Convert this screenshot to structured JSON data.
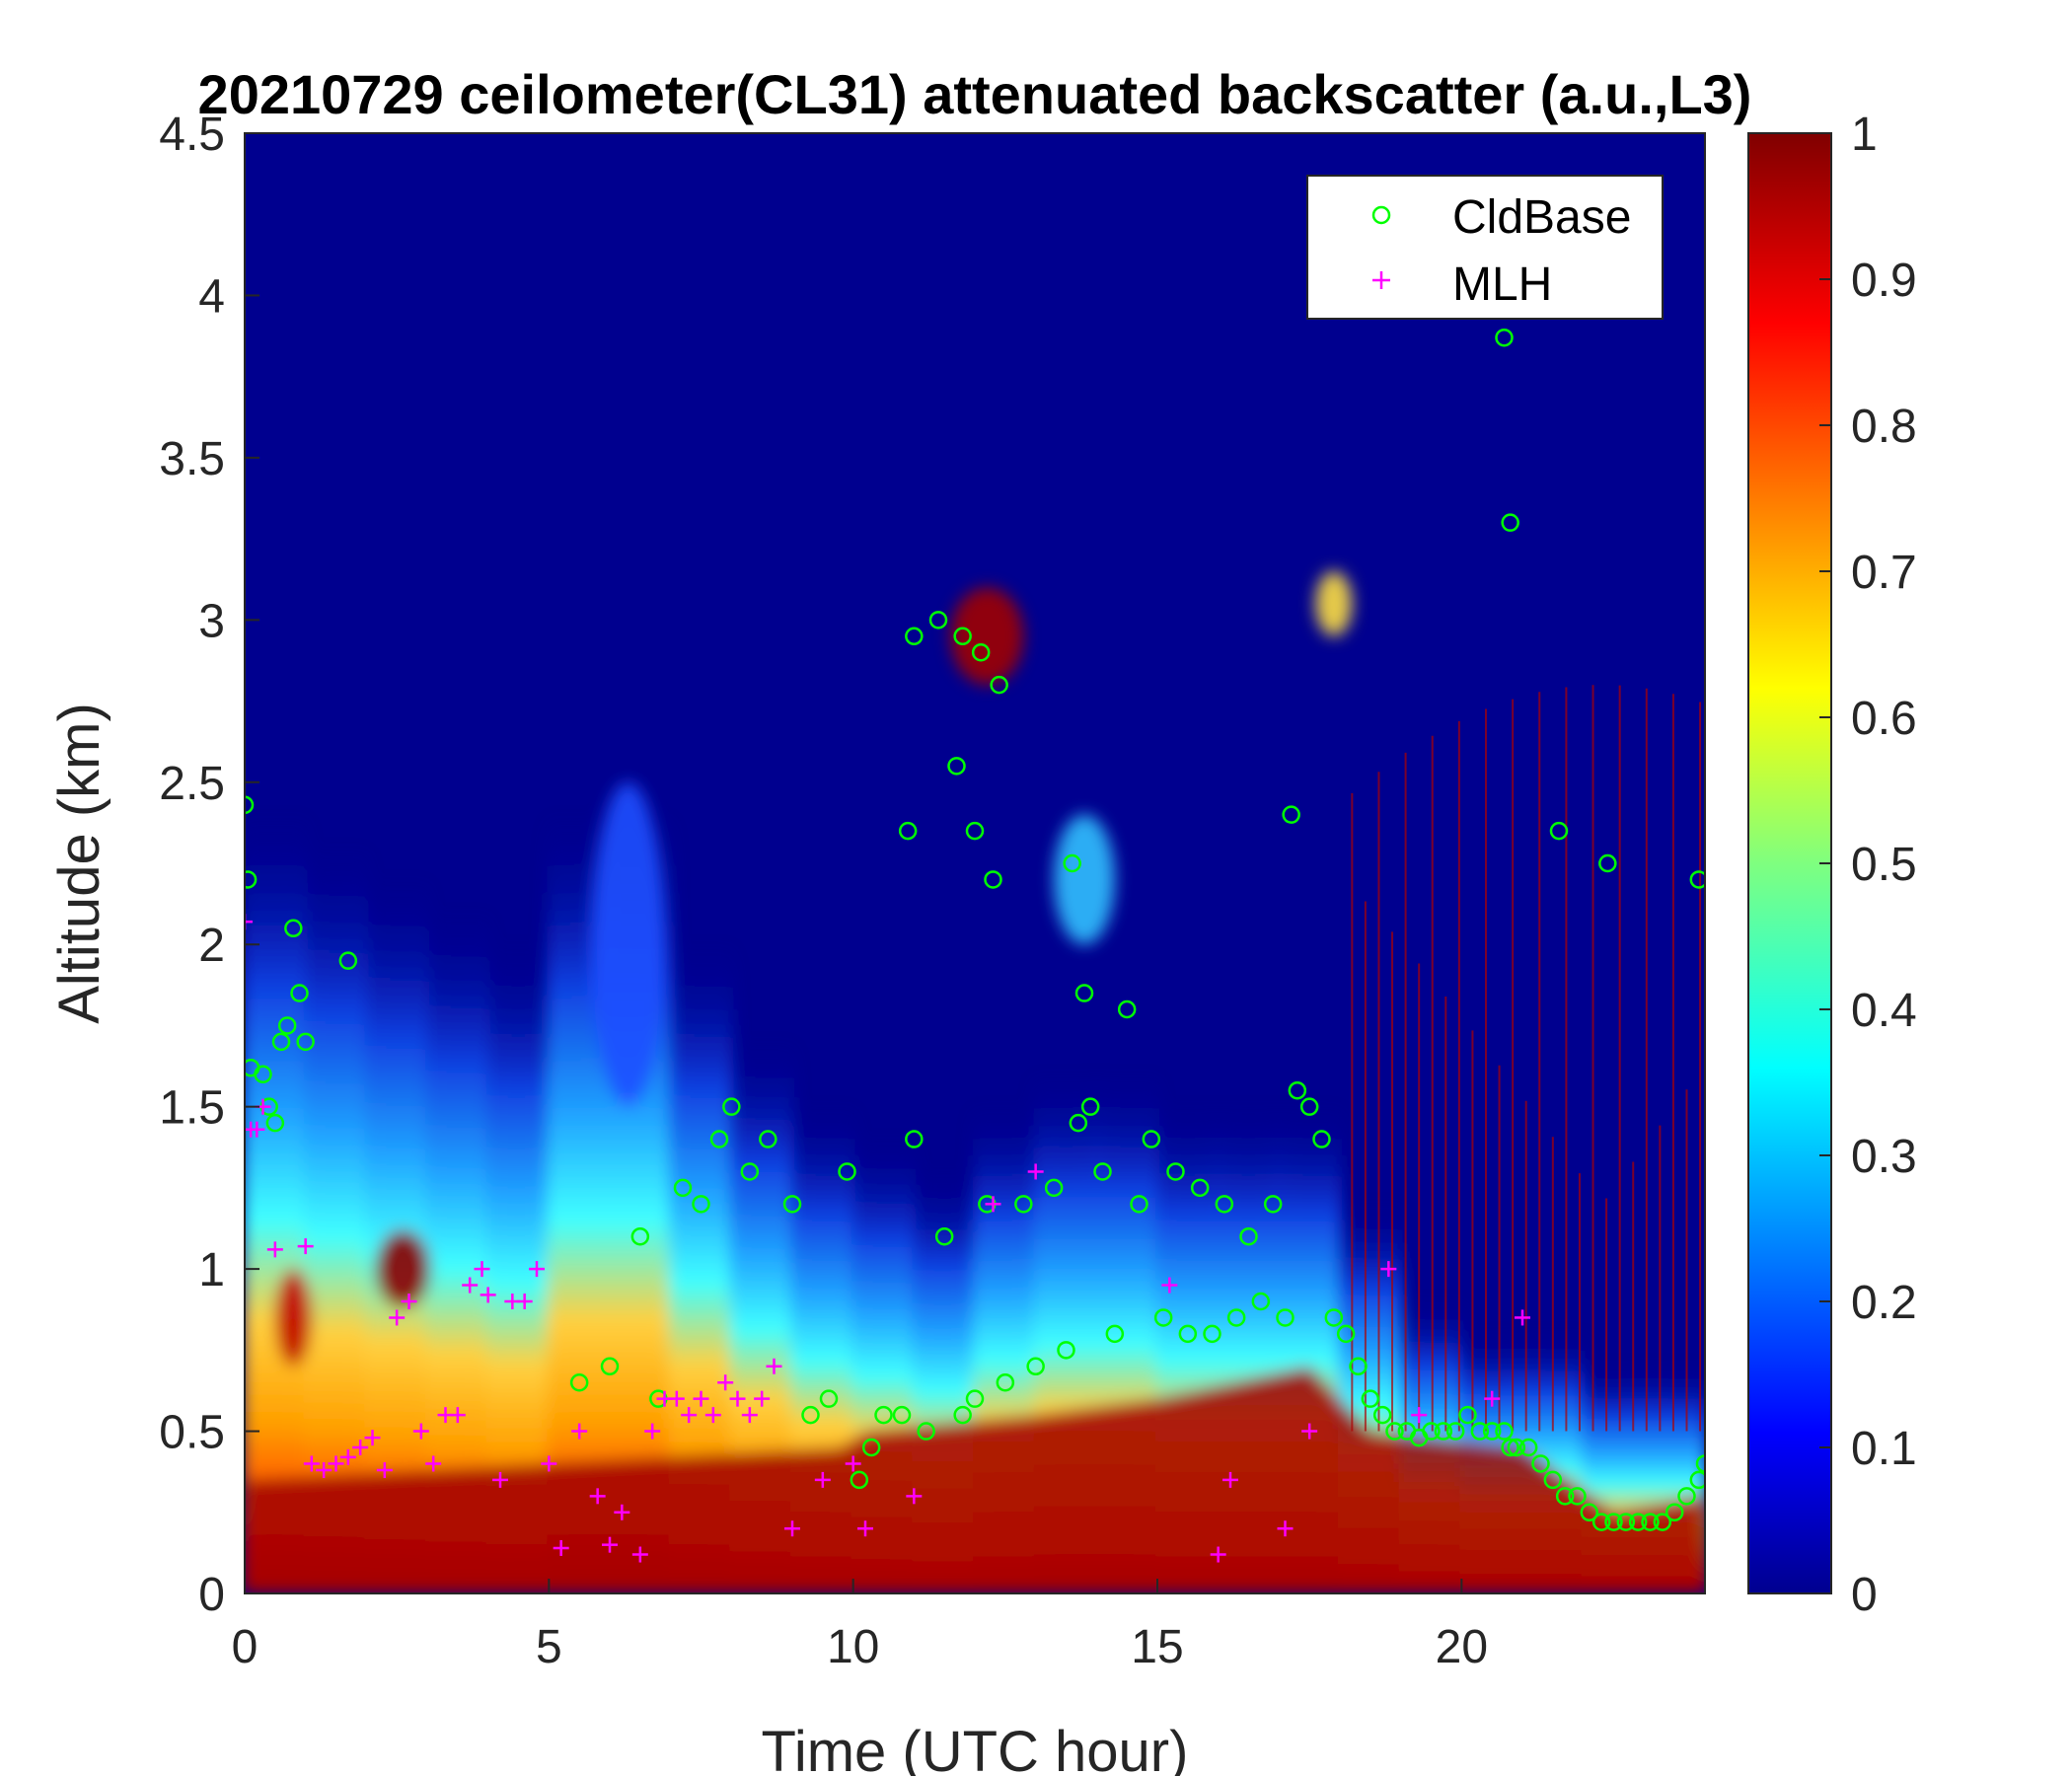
{
  "chart_data": {
    "type": "heatmap",
    "title": "20210729 ceilometer(CL31) attenuated backscatter (a.u.,L3)",
    "xlabel": "Time (UTC hour)",
    "ylabel": "Altitude (km)",
    "xlim": [
      0,
      24
    ],
    "ylim": [
      0,
      4.5
    ],
    "x_ticks": [
      0,
      5,
      10,
      15,
      20
    ],
    "y_ticks": [
      0,
      0.5,
      1,
      1.5,
      2,
      2.5,
      3,
      3.5,
      4,
      4.5
    ],
    "colorbar": {
      "colormap": "jet",
      "range": [
        0,
        1
      ],
      "ticks": [
        0,
        0.1,
        0.2,
        0.3,
        0.4,
        0.5,
        0.6,
        0.7,
        0.8,
        0.9,
        1
      ]
    },
    "legend": {
      "position": "top-right",
      "entries": [
        {
          "label": "CldBase",
          "marker": "circle",
          "color": "#00ff00"
        },
        {
          "label": "MLH",
          "marker": "plus",
          "color": "#ff00ff"
        }
      ]
    },
    "series": [
      {
        "name": "CldBase",
        "color": "#00ff00",
        "x": [
          0.0,
          0.05,
          0.1,
          0.3,
          0.4,
          0.5,
          0.6,
          0.7,
          0.8,
          0.9,
          1.0,
          1.7,
          5.5,
          6.0,
          6.5,
          6.8,
          7.2,
          7.5,
          7.8,
          8.0,
          8.3,
          8.6,
          9.0,
          9.3,
          9.6,
          9.9,
          10.1,
          10.3,
          10.5,
          10.8,
          11.0,
          11.2,
          11.5,
          11.8,
          12.0,
          12.2,
          12.5,
          12.8,
          13.0,
          13.3,
          13.5,
          13.7,
          13.9,
          14.1,
          14.3,
          14.5,
          14.7,
          14.9,
          15.1,
          15.3,
          15.5,
          15.7,
          15.9,
          16.1,
          16.3,
          16.5,
          16.7,
          16.9,
          17.1,
          17.3,
          17.5,
          17.7,
          17.9,
          18.1,
          18.3,
          18.5,
          18.7,
          18.9,
          19.1,
          19.3,
          19.5,
          19.7,
          19.9,
          20.1,
          20.3,
          20.5,
          20.7,
          20.8,
          20.9,
          21.1,
          21.3,
          21.5,
          21.7,
          21.9,
          22.1,
          22.3,
          22.5,
          22.7,
          22.9,
          23.1,
          23.3,
          23.5,
          23.7,
          23.9,
          24.0,
          11.0,
          11.4,
          11.8,
          12.1,
          12.4,
          11.7,
          12.0,
          12.3,
          13.6,
          13.8,
          10.9,
          17.2,
          20.7,
          20.8,
          21.6,
          22.4,
          23.9
        ],
        "y": [
          2.43,
          2.2,
          1.62,
          1.6,
          1.5,
          1.45,
          1.7,
          1.75,
          2.05,
          1.85,
          1.7,
          1.95,
          0.65,
          0.7,
          1.1,
          0.6,
          1.25,
          1.2,
          1.4,
          1.5,
          1.3,
          1.4,
          1.2,
          0.55,
          0.6,
          1.3,
          0.35,
          0.45,
          0.55,
          0.55,
          1.4,
          0.5,
          1.1,
          0.55,
          0.6,
          1.2,
          0.65,
          1.2,
          0.7,
          1.25,
          0.75,
          1.45,
          1.5,
          1.3,
          0.8,
          1.8,
          1.2,
          1.4,
          0.85,
          1.3,
          0.8,
          1.25,
          0.8,
          1.2,
          0.85,
          1.1,
          0.9,
          1.2,
          0.85,
          1.55,
          1.5,
          1.4,
          0.85,
          0.8,
          0.7,
          0.6,
          0.55,
          0.5,
          0.5,
          0.48,
          0.5,
          0.5,
          0.5,
          0.55,
          0.5,
          0.5,
          0.5,
          0.45,
          0.45,
          0.45,
          0.4,
          0.35,
          0.3,
          0.3,
          0.25,
          0.22,
          0.22,
          0.22,
          0.22,
          0.22,
          0.22,
          0.25,
          0.3,
          0.35,
          0.4,
          2.95,
          3.0,
          2.95,
          2.9,
          2.8,
          2.55,
          2.35,
          2.2,
          2.25,
          1.85,
          2.35,
          2.4,
          3.87,
          3.3,
          2.35,
          2.25,
          2.2
        ],
        "marker": "circle"
      },
      {
        "name": "MLH",
        "color": "#ff00ff",
        "x": [
          0.0,
          0.1,
          0.2,
          0.3,
          0.5,
          1.0,
          1.1,
          1.3,
          1.5,
          1.7,
          1.9,
          2.1,
          2.3,
          2.5,
          2.7,
          2.9,
          3.1,
          3.3,
          3.5,
          3.7,
          3.9,
          4.0,
          4.2,
          4.4,
          4.6,
          4.8,
          5.0,
          5.2,
          5.5,
          5.8,
          6.0,
          6.2,
          6.5,
          6.7,
          6.9,
          7.1,
          7.3,
          7.5,
          7.7,
          7.9,
          8.1,
          8.3,
          8.5,
          8.7,
          9.0,
          9.5,
          10.0,
          10.2,
          11.0,
          12.3,
          13.0,
          15.2,
          16.0,
          16.2,
          17.1,
          17.5,
          18.8,
          19.3,
          20.5,
          21.0
        ],
        "y": [
          2.07,
          1.43,
          1.43,
          1.5,
          1.06,
          1.07,
          0.4,
          0.38,
          0.4,
          0.42,
          0.45,
          0.48,
          0.38,
          0.85,
          0.9,
          0.5,
          0.4,
          0.55,
          0.55,
          0.95,
          1.0,
          0.92,
          0.35,
          0.9,
          0.9,
          1.0,
          0.4,
          0.14,
          0.5,
          0.3,
          0.15,
          0.25,
          0.12,
          0.5,
          0.6,
          0.6,
          0.55,
          0.6,
          0.55,
          0.65,
          0.6,
          0.55,
          0.6,
          0.7,
          0.2,
          0.35,
          0.4,
          0.2,
          0.3,
          1.2,
          1.3,
          0.95,
          0.12,
          0.35,
          0.2,
          0.5,
          1.0,
          0.55,
          0.6,
          0.85
        ],
        "marker": "plus"
      }
    ]
  }
}
